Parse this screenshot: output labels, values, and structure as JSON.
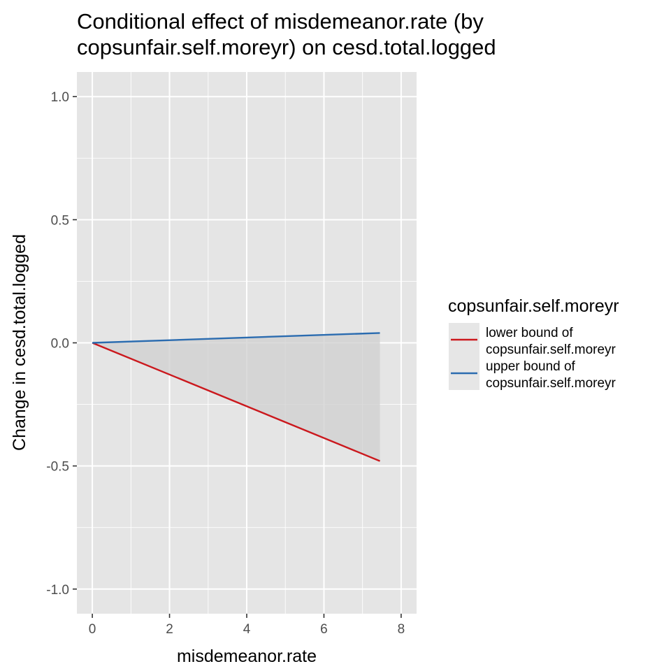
{
  "chart_data": {
    "type": "line",
    "title_lines": [
      "Conditional effect of misdemeanor.rate (by",
      "copsunfair.self.moreyr) on cesd.total.logged"
    ],
    "xlabel": "misdemeanor.rate",
    "ylabel": "Change in cesd.total.logged",
    "xlim": [
      -0.4,
      8.4
    ],
    "ylim": [
      -1.1,
      1.1
    ],
    "x_ticks": [
      0,
      2,
      4,
      6,
      8
    ],
    "x_tick_labels": [
      "0",
      "2",
      "4",
      "6",
      "8"
    ],
    "y_ticks": [
      -1.0,
      -0.5,
      0.0,
      0.5,
      1.0
    ],
    "y_tick_labels": [
      "-1.0",
      "-0.5",
      "0.0",
      "0.5",
      "1.0"
    ],
    "grid": true,
    "legend": {
      "title": "copsunfair.self.moreyr",
      "position": "right"
    },
    "series": [
      {
        "name_lines": [
          "lower bound of",
          "copsunfair.self.moreyr"
        ],
        "color": "#cb181d",
        "x": [
          0,
          7.45
        ],
        "y": [
          0,
          -0.48
        ]
      },
      {
        "name_lines": [
          "upper bound of",
          "copsunfair.self.moreyr"
        ],
        "color": "#2b6cb0",
        "x": [
          0,
          7.45
        ],
        "y": [
          0,
          0.04
        ]
      }
    ],
    "ribbon": {
      "color": "#cfcfcf",
      "opacity": 0.75,
      "x": [
        0,
        7.45
      ],
      "lower": [
        0,
        -0.48
      ],
      "upper": [
        0,
        0.04
      ]
    },
    "panel_color": "#e5e5e5",
    "grid_color": "#ffffff"
  }
}
